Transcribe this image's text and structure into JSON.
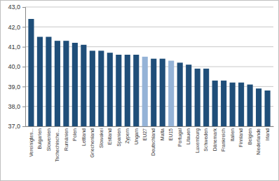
{
  "chart_data": {
    "type": "bar",
    "categories": [
      "Vereinigtes...",
      "Bulgarien",
      "Slowenien",
      "Tschechische...",
      "Rumänien",
      "Polen",
      "Lettland",
      "Griechenland",
      "Slowakei",
      "Estland",
      "Spanien",
      "Zypern",
      "Ungarn",
      "EU27",
      "Deutschland",
      "Malta",
      "EU15",
      "Portugal",
      "Litauen",
      "Luxemburg",
      "Schweden",
      "Dänemark",
      "Frankreich",
      "Italien",
      "Finnland",
      "Belgien",
      "Niederlande",
      "Irland"
    ],
    "values": [
      42.4,
      41.5,
      41.5,
      41.3,
      41.3,
      41.2,
      41.1,
      40.8,
      40.8,
      40.7,
      40.6,
      40.6,
      40.6,
      40.5,
      40.4,
      40.4,
      40.3,
      40.2,
      40.1,
      39.9,
      39.9,
      39.3,
      39.3,
      39.2,
      39.2,
      39.1,
      38.9,
      38.8
    ],
    "colors": [
      "#1f4e79",
      "#1f4e79",
      "#1f4e79",
      "#1f4e79",
      "#1f4e79",
      "#1f4e79",
      "#1f4e79",
      "#1f4e79",
      "#1f4e79",
      "#1f4e79",
      "#1f4e79",
      "#1f4e79",
      "#1f4e79",
      "#95b3d7",
      "#1f4e79",
      "#1f4e79",
      "#95b3d7",
      "#1f4e79",
      "#1f4e79",
      "#1f4e79",
      "#1f4e79",
      "#1f4e79",
      "#1f4e79",
      "#1f4e79",
      "#1f4e79",
      "#1f4e79",
      "#1f4e79",
      "#1f4e79"
    ],
    "ylim": [
      37,
      43
    ],
    "yticks": [
      {
        "value": 37,
        "label": "37,0"
      },
      {
        "value": 38,
        "label": "38,0"
      },
      {
        "value": 39,
        "label": "39,0"
      },
      {
        "value": 40,
        "label": "40,0"
      },
      {
        "value": 41,
        "label": "41,0"
      },
      {
        "value": 42,
        "label": "42,0"
      },
      {
        "value": 43,
        "label": "43,0"
      }
    ],
    "grid": true
  }
}
